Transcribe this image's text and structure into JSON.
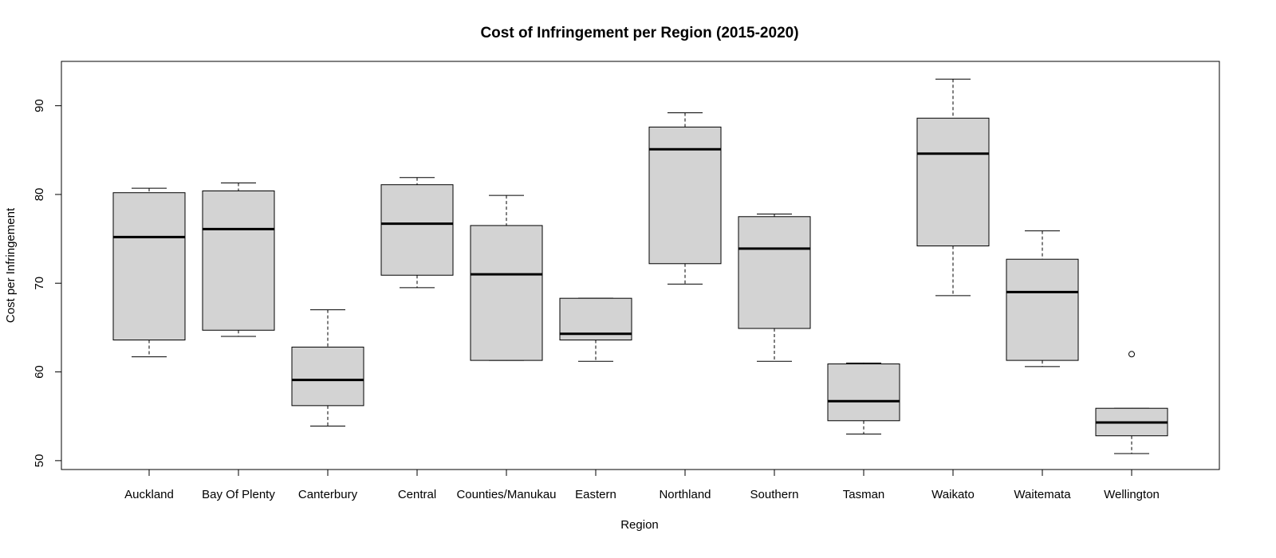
{
  "chart_data": {
    "type": "boxplot",
    "title": "Cost of Infringement per Region (2015-2020)",
    "xlabel": "Region",
    "ylabel": "Cost per Infringement",
    "ylim": [
      49,
      95
    ],
    "yticks": [
      50,
      60,
      70,
      80,
      90
    ],
    "grid": false,
    "legend": "none",
    "colors": {
      "box_fill": "#d3d3d3",
      "stroke": "#000000",
      "background": "#ffffff"
    },
    "categories": [
      "Auckland",
      "Bay Of Plenty",
      "Canterbury",
      "Central",
      "Counties/Manukau",
      "Eastern",
      "Northland",
      "Southern",
      "Tasman",
      "Waikato",
      "Waitemata",
      "Wellington"
    ],
    "boxes": [
      {
        "label": "Auckland",
        "min": 61.7,
        "q1": 63.6,
        "median": 75.2,
        "q3": 80.2,
        "max": 80.7,
        "outliers": []
      },
      {
        "label": "Bay Of Plenty",
        "min": 64.0,
        "q1": 64.7,
        "median": 76.1,
        "q3": 80.4,
        "max": 81.3,
        "outliers": []
      },
      {
        "label": "Canterbury",
        "min": 53.9,
        "q1": 56.2,
        "median": 59.1,
        "q3": 62.8,
        "max": 67.0,
        "outliers": []
      },
      {
        "label": "Central",
        "min": 69.5,
        "q1": 70.9,
        "median": 76.7,
        "q3": 81.1,
        "max": 81.9,
        "outliers": []
      },
      {
        "label": "Counties/Manukau",
        "min": 61.3,
        "q1": 61.3,
        "median": 71.0,
        "q3": 76.5,
        "max": 79.9,
        "outliers": []
      },
      {
        "label": "Eastern",
        "min": 61.2,
        "q1": 63.6,
        "median": 64.3,
        "q3": 68.3,
        "max": 68.3,
        "outliers": []
      },
      {
        "label": "Northland",
        "min": 69.9,
        "q1": 72.2,
        "median": 85.1,
        "q3": 87.6,
        "max": 89.2,
        "outliers": []
      },
      {
        "label": "Southern",
        "min": 61.2,
        "q1": 64.9,
        "median": 73.9,
        "q3": 77.5,
        "max": 77.8,
        "outliers": []
      },
      {
        "label": "Tasman",
        "min": 53.0,
        "q1": 54.5,
        "median": 56.7,
        "q3": 60.9,
        "max": 61.0,
        "outliers": []
      },
      {
        "label": "Waikato",
        "min": 68.6,
        "q1": 74.2,
        "median": 84.6,
        "q3": 88.6,
        "max": 93.0,
        "outliers": []
      },
      {
        "label": "Waitemata",
        "min": 60.6,
        "q1": 61.3,
        "median": 69.0,
        "q3": 72.7,
        "max": 75.9,
        "outliers": []
      },
      {
        "label": "Wellington",
        "min": 50.8,
        "q1": 52.8,
        "median": 54.3,
        "q3": 55.9,
        "max": 55.9,
        "outliers": [
          62.0
        ]
      }
    ]
  }
}
